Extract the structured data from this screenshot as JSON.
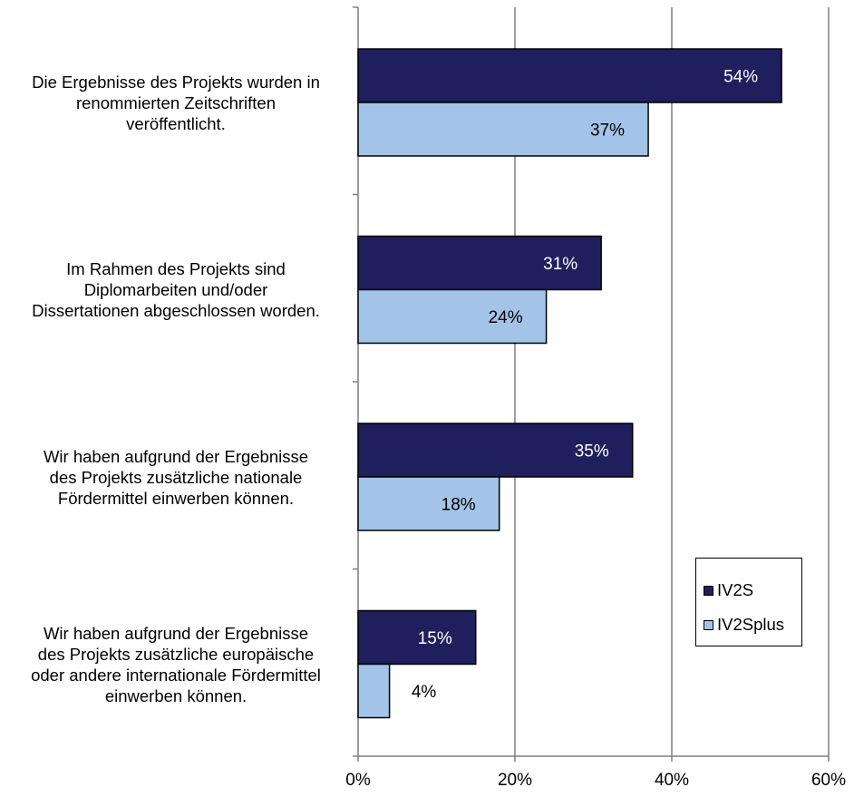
{
  "chart_data": {
    "type": "bar",
    "orientation": "horizontal",
    "categories": [
      [
        "Die Ergebnisse des Projekts wurden in",
        "renommierten Zeitschriften",
        "veröffentlicht."
      ],
      [
        "Im Rahmen des Projekts sind",
        "Diplomarbeiten und/oder",
        "Dissertationen abgeschlossen worden."
      ],
      [
        "Wir haben aufgrund der Ergebnisse",
        "des Projekts zusätzliche nationale",
        "Fördermittel einwerben können."
      ],
      [
        "Wir haben aufgrund der Ergebnisse",
        "des Projekts zusätzliche europäische",
        "oder andere internationale Fördermittel",
        "einwerben können."
      ]
    ],
    "series": [
      {
        "name": "IV2S",
        "values": [
          54,
          31,
          35,
          15
        ],
        "labels": [
          "54%",
          "31%",
          "35%",
          "15%"
        ],
        "color": "#1f1f5e",
        "label_color": "#ffffff"
      },
      {
        "name": "IV2Splus",
        "values": [
          37,
          24,
          18,
          4
        ],
        "labels": [
          "37%",
          "24%",
          "18%",
          "4%"
        ],
        "color": "#a3c4e8",
        "label_color": "#000000"
      }
    ],
    "xlim": [
      0,
      60
    ],
    "xticks": [
      0,
      20,
      40,
      60
    ],
    "xtick_labels": [
      "0%",
      "20%",
      "40%",
      "60%"
    ],
    "grid": true,
    "legend": {
      "position": "bottom-right",
      "entries": [
        "IV2S",
        "IV2Splus"
      ]
    },
    "colors": {
      "gridline": "#7f7f7f",
      "axis": "#7f7f7f",
      "bar_border": "#000000"
    }
  }
}
